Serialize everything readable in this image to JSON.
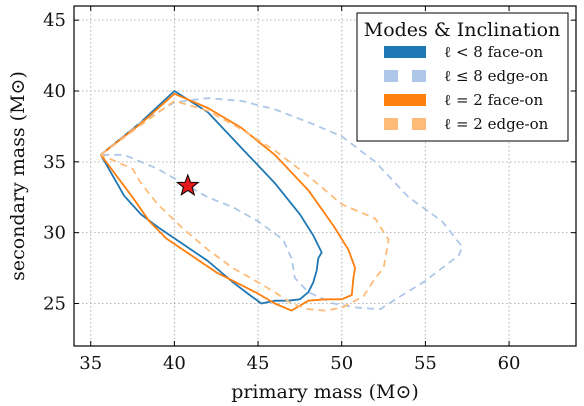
{
  "chart_data": {
    "type": "line",
    "xlabel": "primary mass (M⊙)",
    "ylabel": "secondary mass (M⊙)",
    "xlim": [
      34,
      64
    ],
    "ylim": [
      22,
      46
    ],
    "xticks": [
      "35",
      "40",
      "45",
      "50",
      "55",
      "60"
    ],
    "yticks": [
      "25",
      "30",
      "35",
      "40",
      "45"
    ],
    "grid": true,
    "legend": {
      "title": "Modes & Inclination",
      "placement": "top-right",
      "entries": [
        {
          "label": "ℓ < 8 face-on",
          "series": 0
        },
        {
          "label": "ℓ ≤ 8 edge-on",
          "series": 1
        },
        {
          "label": "ℓ = 2 face-on",
          "series": 2
        },
        {
          "label": "ℓ = 2 edge-on",
          "series": 3
        }
      ]
    },
    "marker": {
      "x": 40.8,
      "y": 33.3,
      "shape": "star",
      "color": "#e31a1c"
    },
    "series": [
      {
        "name": "ℓ < 8 face-on",
        "color": "#1f77b4",
        "style": "solid",
        "x": [
          35.6,
          38.0,
          40.0,
          42.0,
          44.0,
          46.0,
          47.5,
          48.3,
          48.8,
          48.6,
          48.5,
          48.3,
          48.0,
          47.5,
          46.8,
          46.0,
          45.2,
          44.5,
          43.5,
          42.0,
          40.5,
          39.0,
          38.0,
          37.0,
          35.6
        ],
        "y": [
          35.5,
          37.8,
          40.0,
          38.5,
          36.0,
          33.5,
          31.3,
          29.8,
          28.6,
          28.2,
          27.3,
          26.5,
          25.8,
          25.3,
          25.2,
          25.2,
          25.0,
          25.6,
          26.5,
          28.0,
          29.2,
          30.4,
          31.3,
          32.6,
          35.5
        ]
      },
      {
        "name": "ℓ ≤ 8 edge-on",
        "color": "#aec7e8",
        "style": "dashed",
        "x": [
          35.6,
          38.0,
          40.0,
          42.0,
          44.0,
          46.0,
          48.0,
          50.0,
          52.0,
          54.0,
          56.0,
          57.2,
          57.0,
          56.0,
          55.0,
          53.5,
          52.3,
          51.0,
          49.5,
          48.0,
          47.2,
          47.0,
          46.5,
          45.0,
          43.5,
          42.0,
          40.5,
          39.0,
          38.0,
          37.0,
          35.6
        ],
        "y": [
          35.5,
          37.8,
          39.2,
          39.5,
          39.3,
          38.7,
          37.8,
          36.8,
          35.0,
          32.5,
          30.8,
          29.0,
          28.4,
          27.5,
          26.6,
          25.5,
          24.6,
          24.7,
          25.0,
          25.8,
          26.8,
          28.2,
          29.5,
          30.8,
          31.8,
          32.5,
          33.5,
          34.5,
          35.0,
          35.5,
          35.5
        ]
      },
      {
        "name": "ℓ = 2 face-on",
        "color": "#ff7f0e",
        "style": "solid",
        "x": [
          35.6,
          38.0,
          40.0,
          42.0,
          44.0,
          46.0,
          48.0,
          49.5,
          50.4,
          50.8,
          50.7,
          50.6,
          50.0,
          49.0,
          48.0,
          47.0,
          46.0,
          45.0,
          44.0,
          42.5,
          41.0,
          39.5,
          38.5,
          37.5,
          35.6
        ],
        "y": [
          35.5,
          37.7,
          39.8,
          38.8,
          37.4,
          35.5,
          33.0,
          30.5,
          28.8,
          27.5,
          26.8,
          25.6,
          25.3,
          25.3,
          25.2,
          24.5,
          25.0,
          25.7,
          26.3,
          27.2,
          28.4,
          29.6,
          30.8,
          32.5,
          35.5
        ]
      },
      {
        "name": "ℓ = 2 edge-on",
        "color": "#ffbb78",
        "style": "dashed",
        "x": [
          35.6,
          38.0,
          40.0,
          42.0,
          44.0,
          46.0,
          48.0,
          50.0,
          52.0,
          52.8,
          52.5,
          52.0,
          51.3,
          50.0,
          49.0,
          48.0,
          47.0,
          46.0,
          45.0,
          43.5,
          42.0,
          40.5,
          39.0,
          38.0,
          37.5,
          35.6
        ],
        "y": [
          35.5,
          37.6,
          39.3,
          38.6,
          37.3,
          35.8,
          34.0,
          32.0,
          31.0,
          29.5,
          27.5,
          26.8,
          25.5,
          24.7,
          24.5,
          24.6,
          25.0,
          25.8,
          26.5,
          27.5,
          28.8,
          30.3,
          32.0,
          33.5,
          34.5,
          35.5
        ]
      }
    ]
  }
}
